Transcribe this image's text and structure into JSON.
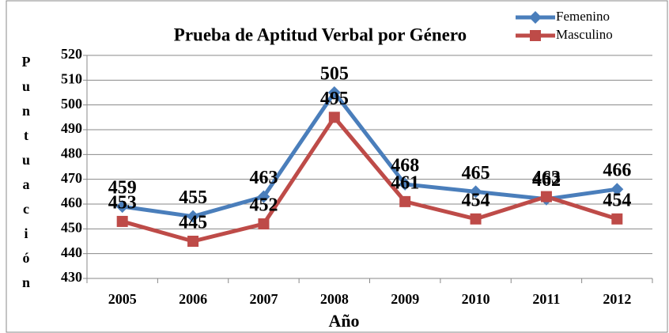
{
  "chart_data": {
    "type": "line",
    "title": "Prueba de Aptitud Verbal por Género",
    "x_label": "Año",
    "y_label": "Puntuación",
    "categories": [
      "2005",
      "2006",
      "2007",
      "2008",
      "2009",
      "2010",
      "2011",
      "2012"
    ],
    "series": [
      {
        "name": "Femenino",
        "color": "#4a7ebb",
        "marker": "diamond",
        "values": [
          459,
          455,
          463,
          505,
          468,
          465,
          462,
          466
        ]
      },
      {
        "name": "Masculino",
        "color": "#be4b48",
        "marker": "square",
        "values": [
          453,
          445,
          452,
          495,
          461,
          454,
          463,
          454
        ]
      }
    ],
    "ylim": [
      430,
      520
    ],
    "yticks": [
      430,
      440,
      450,
      460,
      470,
      480,
      490,
      500,
      510,
      520
    ],
    "grid": true,
    "legend": "top-right"
  }
}
